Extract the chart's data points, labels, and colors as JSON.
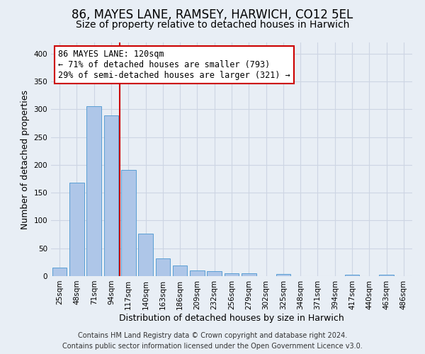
{
  "title": "86, MAYES LANE, RAMSEY, HARWICH, CO12 5EL",
  "subtitle": "Size of property relative to detached houses in Harwich",
  "xlabel": "Distribution of detached houses by size in Harwich",
  "ylabel": "Number of detached properties",
  "bar_labels": [
    "25sqm",
    "48sqm",
    "71sqm",
    "94sqm",
    "117sqm",
    "140sqm",
    "163sqm",
    "186sqm",
    "209sqm",
    "232sqm",
    "256sqm",
    "279sqm",
    "302sqm",
    "325sqm",
    "348sqm",
    "371sqm",
    "394sqm",
    "417sqm",
    "440sqm",
    "463sqm",
    "486sqm"
  ],
  "bar_values": [
    15,
    168,
    305,
    289,
    191,
    77,
    32,
    19,
    10,
    9,
    5,
    5,
    0,
    4,
    0,
    0,
    0,
    3,
    0,
    3,
    0
  ],
  "bar_color": "#aec6e8",
  "bar_edgecolor": "#5a9fd4",
  "vline_color": "#cc0000",
  "annotation_text": "86 MAYES LANE: 120sqm\n← 71% of detached houses are smaller (793)\n29% of semi-detached houses are larger (321) →",
  "annotation_box_facecolor": "#ffffff",
  "annotation_box_edgecolor": "#cc0000",
  "ylim": [
    0,
    420
  ],
  "yticks": [
    0,
    50,
    100,
    150,
    200,
    250,
    300,
    350,
    400
  ],
  "grid_color": "#cdd5e3",
  "background_color": "#e8eef5",
  "footer_line1": "Contains HM Land Registry data © Crown copyright and database right 2024.",
  "footer_line2": "Contains public sector information licensed under the Open Government Licence v3.0.",
  "title_fontsize": 12,
  "subtitle_fontsize": 10,
  "annotation_fontsize": 8.5,
  "axis_label_fontsize": 9,
  "tick_fontsize": 7.5,
  "footer_fontsize": 7
}
